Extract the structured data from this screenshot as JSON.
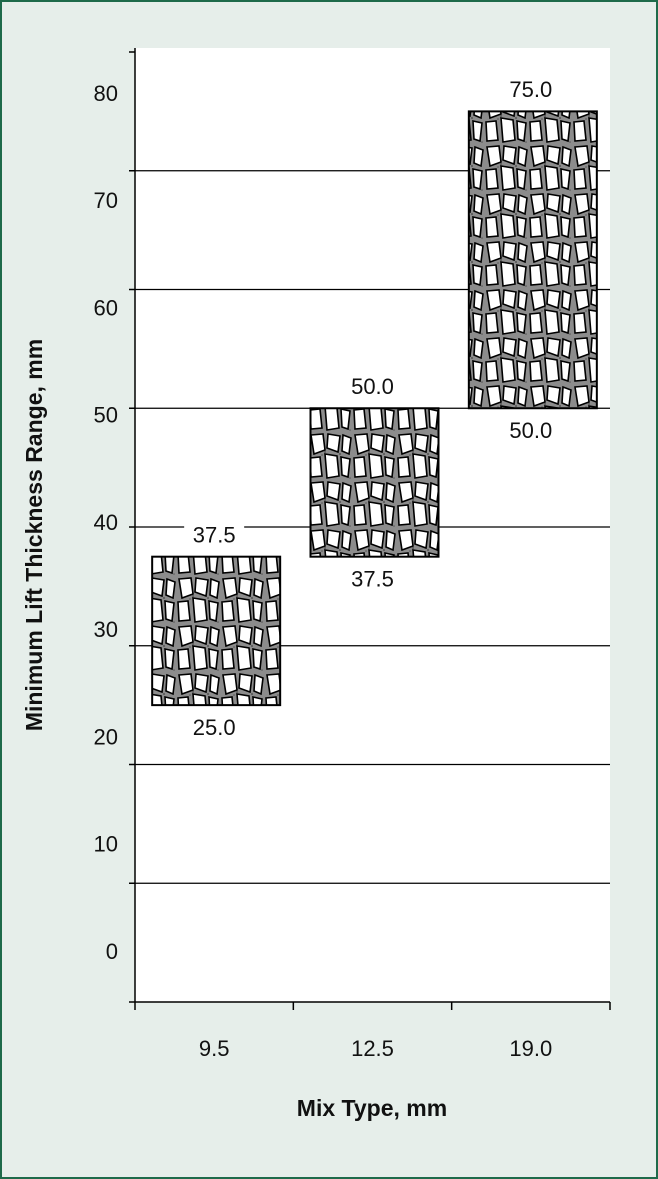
{
  "chart_data": {
    "type": "range-bar",
    "x_label": "Mix Type, mm",
    "y_label": "Minimum Lift Thickness Range, mm",
    "categories": [
      "9.5",
      "12.5",
      "19.0"
    ],
    "low": {
      "values": [
        25.0,
        37.5,
        50.0
      ],
      "value_labels": [
        "25.0",
        "37.5",
        "50.0"
      ]
    },
    "high": {
      "values": [
        37.5,
        50.0,
        75.0
      ],
      "value_labels": [
        "37.5",
        "50.0",
        "75.0"
      ]
    },
    "ylim": [
      0,
      80
    ],
    "yticks": [
      0,
      10,
      20,
      30,
      40,
      50,
      60,
      70,
      80
    ],
    "grid": true
  }
}
